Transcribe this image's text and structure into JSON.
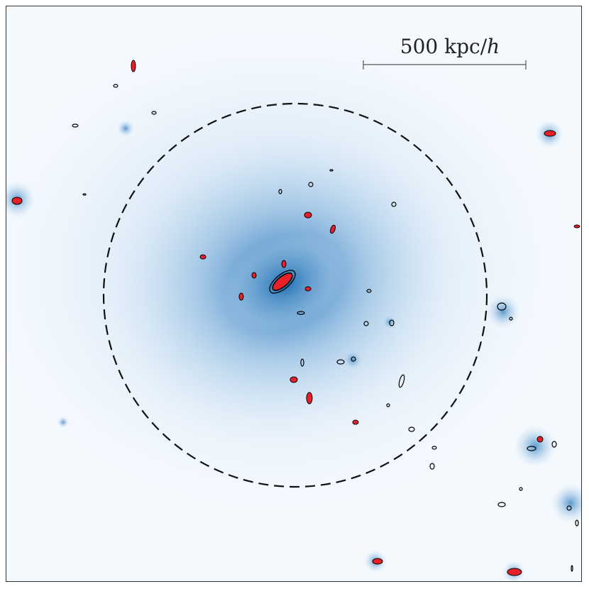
{
  "scale_bar": {
    "value": "500",
    "unit_prefix": "kpc/",
    "unit_italic": "h"
  },
  "colors": {
    "background": "#f4f9fe",
    "halo_core": "#1c6aa8",
    "halo_mid": "#5a9bd0",
    "halo_outer": "#c8def0",
    "subhalo_fill": "#e8202a",
    "contour": "#000000",
    "virial_circle": "#111111"
  },
  "icons": {
    "virial_radius": "dashed-circle-icon",
    "subhalo": "red-blob-icon"
  }
}
